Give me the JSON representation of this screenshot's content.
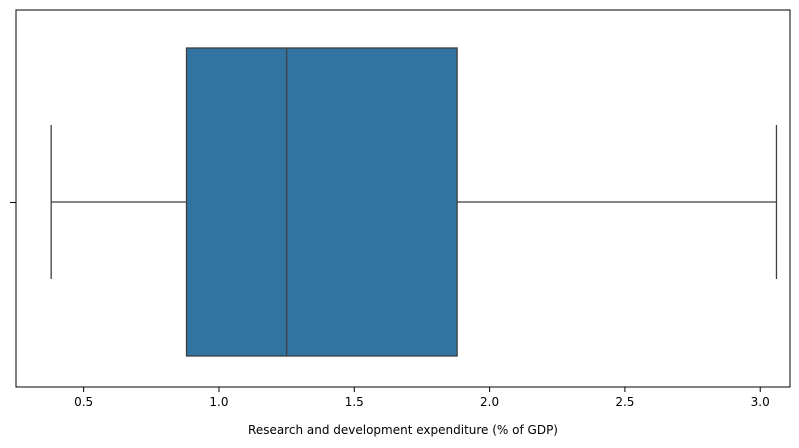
{
  "chart_data": {
    "type": "box",
    "xlabel": "Research and development expenditure (% of GDP)",
    "ylabel": "",
    "title": "",
    "xlim": [
      0.25,
      3.11
    ],
    "xticks": [
      0.5,
      1.0,
      1.5,
      2.0,
      2.5,
      3.0
    ],
    "xtick_labels": [
      "0.5",
      "1.0",
      "1.5",
      "2.0",
      "2.5",
      "3.0"
    ],
    "orientation": "horizontal",
    "grid": false,
    "legend": "none",
    "box": {
      "whisker_low": 0.38,
      "q1": 0.88,
      "median": 1.25,
      "q3": 1.88,
      "whisker_high": 3.06
    },
    "colors": {
      "box_fill": "#3274a1",
      "line": "#3f3f3f",
      "axis": "#000000"
    }
  }
}
